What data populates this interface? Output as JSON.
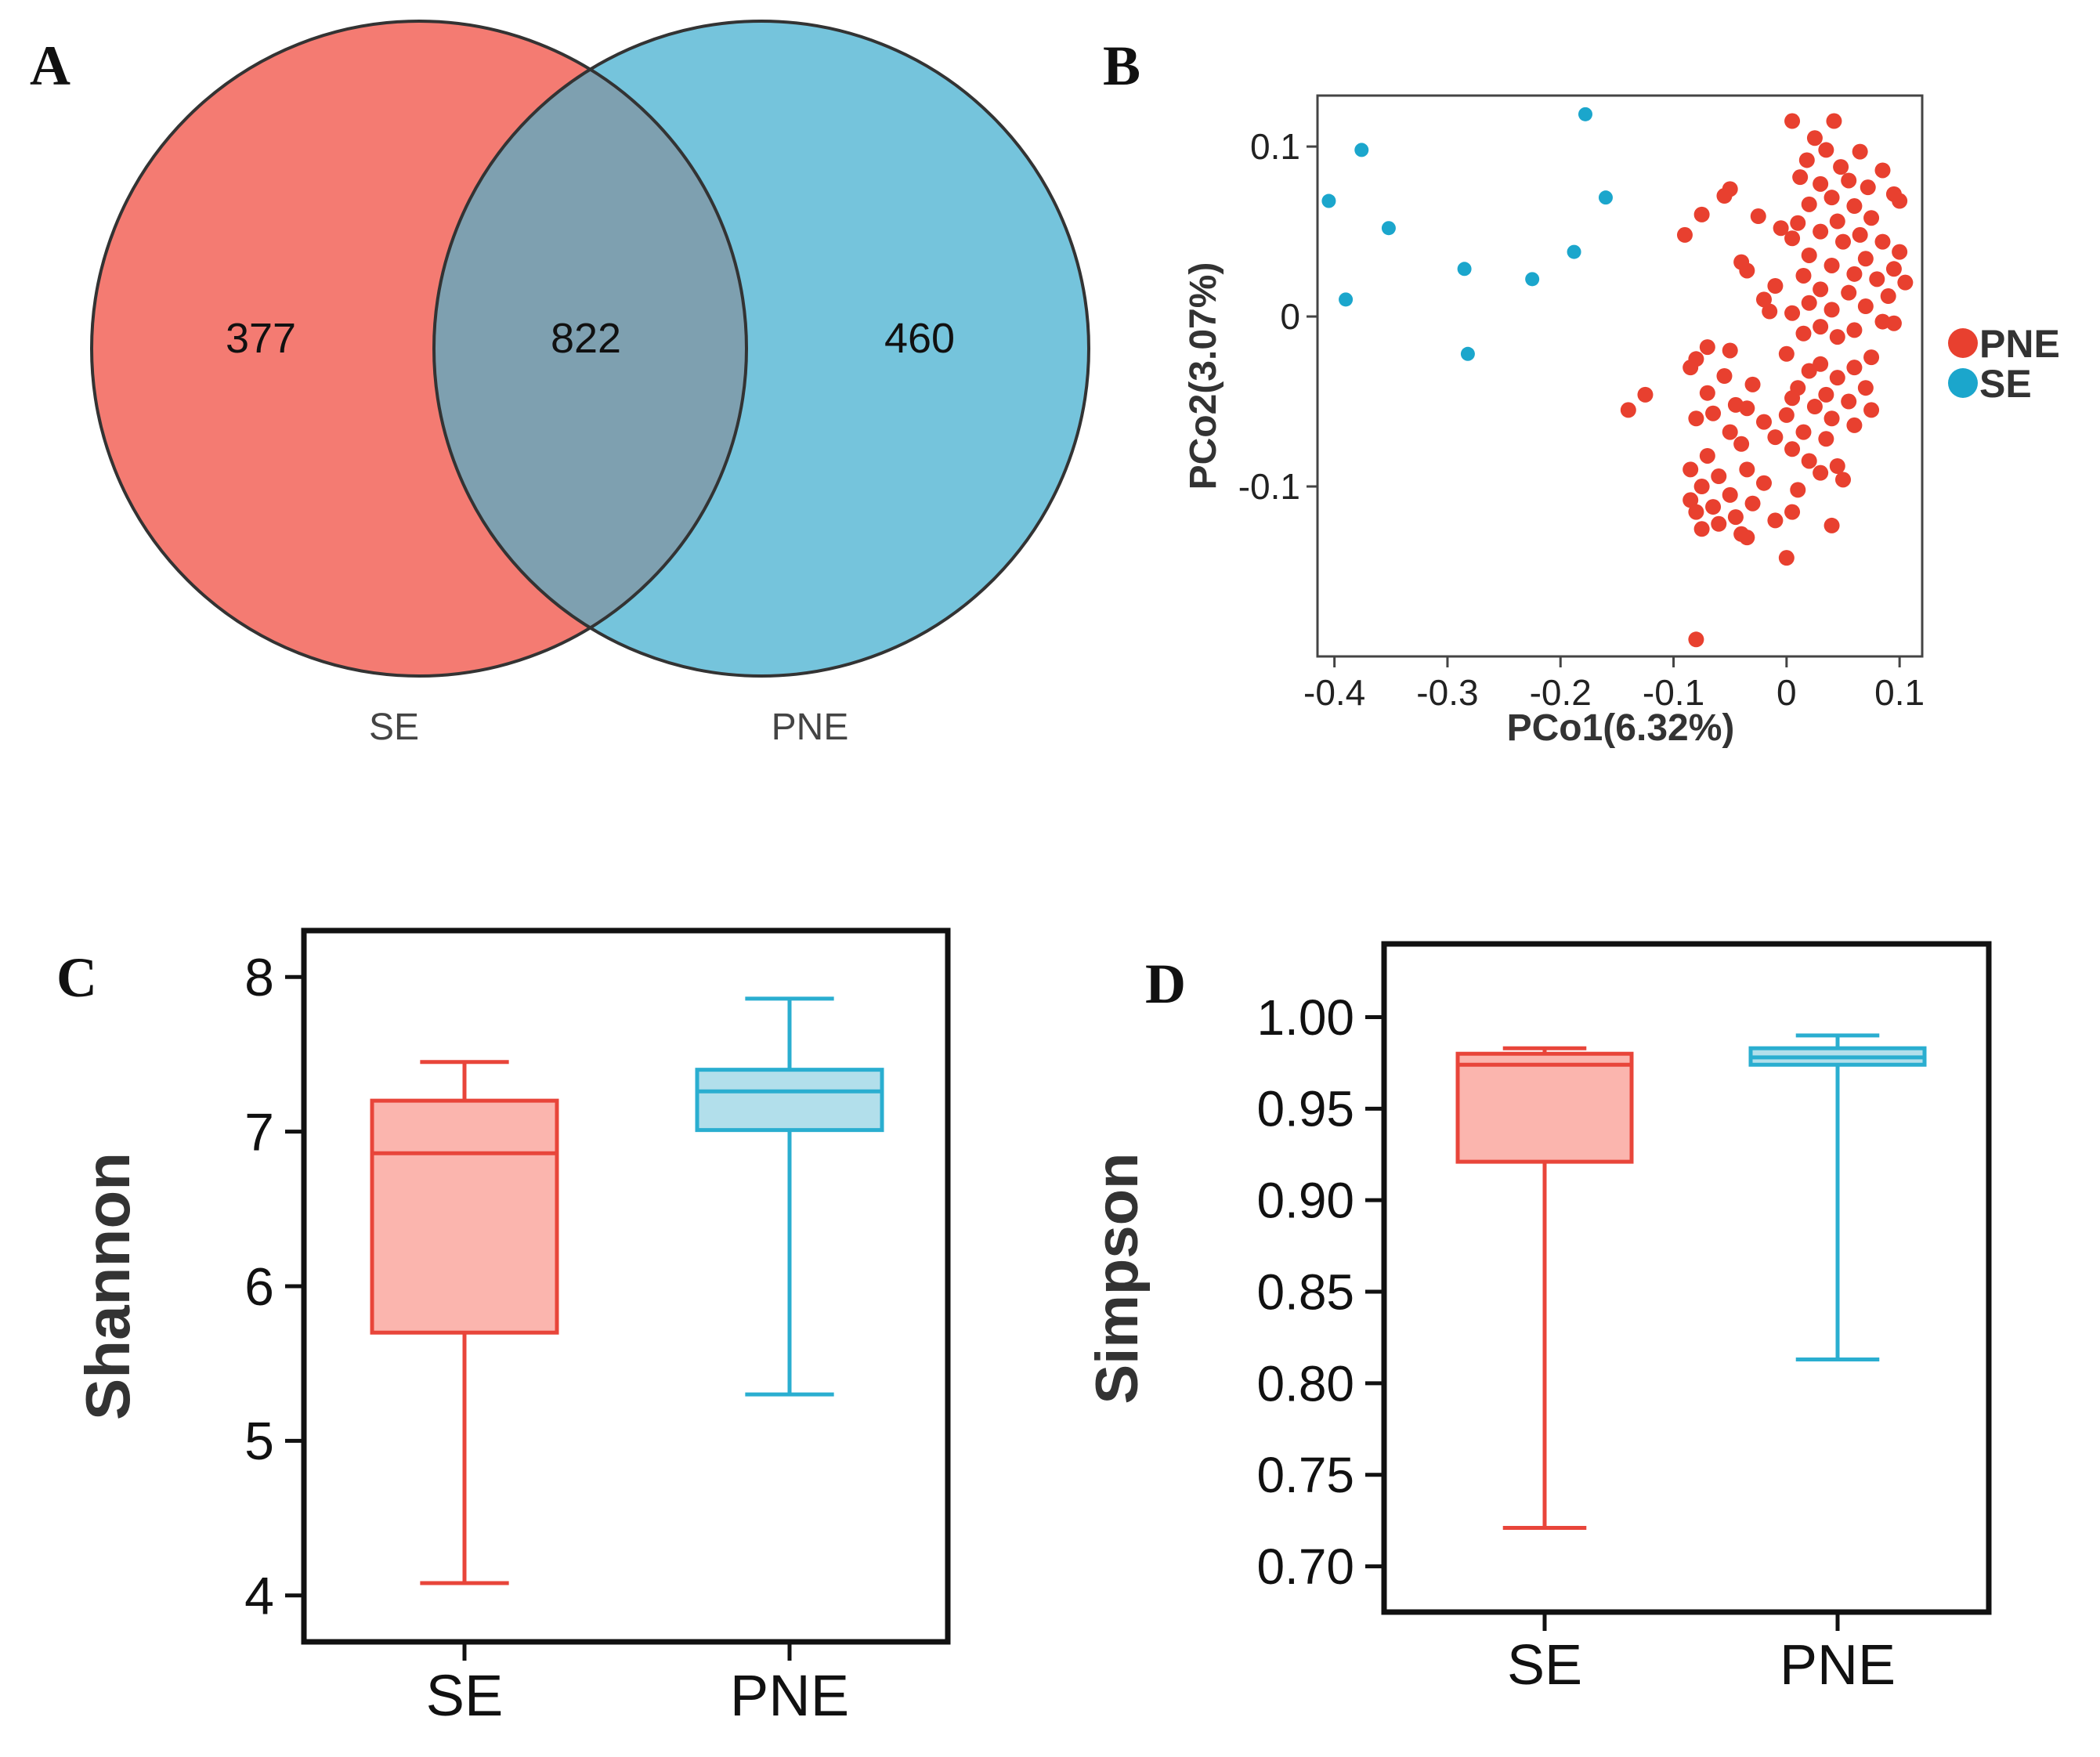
{
  "panel_labels": {
    "a": "A",
    "b": "B",
    "c": "C",
    "d": "D"
  },
  "colors": {
    "se": "#f47b72",
    "pne": "#75c4dc",
    "overlap": "#7ea0b0",
    "red_dot": "#e8402f",
    "blue_dot": "#1ba6cc",
    "box_red": "#e8453a",
    "box_red_fill": "#fbb5ae",
    "box_blue": "#2aaed0",
    "box_blue_fill": "#b2dfeb"
  },
  "chart_data": [
    {
      "type": "venn",
      "sets": [
        {
          "name": "SE",
          "only": "377"
        },
        {
          "name": "PNE",
          "only": "460"
        }
      ],
      "intersection": "822",
      "labels": {
        "left": "SE",
        "right": "PNE"
      }
    },
    {
      "type": "scatter",
      "xlabel": "PCo1(6.32%)",
      "ylabel": "PCo2(3.07%)",
      "xlim": [
        -0.415,
        0.12
      ],
      "ylim": [
        -0.2,
        0.13
      ],
      "xticks": [
        {
          "v": -0.4,
          "t": "-0.4"
        },
        {
          "v": -0.3,
          "t": "-0.3"
        },
        {
          "v": -0.2,
          "t": "-0.2"
        },
        {
          "v": -0.1,
          "t": "-0.1"
        },
        {
          "v": 0,
          "t": "0"
        },
        {
          "v": 0.1,
          "t": "0.1"
        }
      ],
      "yticks": [
        {
          "v": 0.1,
          "t": "0.1"
        },
        {
          "v": 0,
          "t": "0"
        },
        {
          "v": -0.1,
          "t": "-0.1"
        }
      ],
      "legend": [
        {
          "name": "PNE",
          "color": "#e8402f"
        },
        {
          "name": "SE",
          "color": "#1ba6cc"
        }
      ],
      "series": [
        {
          "name": "SE",
          "points": [
            [
              -0.178,
              0.119
            ],
            [
              -0.376,
              0.098
            ],
            [
              -0.405,
              0.068
            ],
            [
              -0.16,
              0.07
            ],
            [
              -0.352,
              0.052
            ],
            [
              -0.188,
              0.038
            ],
            [
              -0.285,
              0.028
            ],
            [
              -0.225,
              0.022
            ],
            [
              -0.39,
              0.01
            ],
            [
              -0.282,
              -0.022
            ]
          ]
        },
        {
          "name": "PNE",
          "points": [
            [
              -0.08,
              -0.19
            ],
            [
              0.005,
              0.115
            ],
            [
              0.042,
              0.115
            ],
            [
              0.025,
              0.105
            ],
            [
              0.035,
              0.098
            ],
            [
              0.065,
              0.097
            ],
            [
              0.018,
              0.092
            ],
            [
              0.048,
              0.088
            ],
            [
              0.085,
              0.086
            ],
            [
              0.012,
              0.082
            ],
            [
              0.055,
              0.08
            ],
            [
              0.03,
              0.078
            ],
            [
              0.072,
              0.076
            ],
            [
              -0.05,
              0.075
            ],
            [
              -0.055,
              0.071
            ],
            [
              0.04,
              0.07
            ],
            [
              0.095,
              0.072
            ],
            [
              0.1,
              0.068
            ],
            [
              0.02,
              0.066
            ],
            [
              0.06,
              0.065
            ],
            [
              -0.075,
              0.06
            ],
            [
              -0.025,
              0.059
            ],
            [
              0.01,
              0.055
            ],
            [
              0.045,
              0.056
            ],
            [
              0.075,
              0.058
            ],
            [
              -0.005,
              0.052
            ],
            [
              0.03,
              0.05
            ],
            [
              0.065,
              0.048
            ],
            [
              -0.09,
              0.048
            ],
            [
              0.005,
              0.046
            ],
            [
              0.05,
              0.044
            ],
            [
              0.085,
              0.044
            ],
            [
              0.1,
              0.038
            ],
            [
              0.02,
              0.036
            ],
            [
              0.07,
              0.034
            ],
            [
              -0.04,
              0.032
            ],
            [
              0.04,
              0.03
            ],
            [
              0.095,
              0.028
            ],
            [
              -0.035,
              0.027
            ],
            [
              0.06,
              0.025
            ],
            [
              0.015,
              0.024
            ],
            [
              0.08,
              0.022
            ],
            [
              0.105,
              0.02
            ],
            [
              -0.01,
              0.018
            ],
            [
              0.03,
              0.016
            ],
            [
              0.055,
              0.014
            ],
            [
              0.09,
              0.012
            ],
            [
              -0.02,
              0.01
            ],
            [
              0.02,
              0.008
            ],
            [
              0.07,
              0.006
            ],
            [
              0.04,
              0.004
            ],
            [
              -0.015,
              0.003
            ],
            [
              0.005,
              0.002
            ],
            [
              0.085,
              -0.003
            ],
            [
              0.095,
              -0.004
            ],
            [
              0.03,
              -0.006
            ],
            [
              0.06,
              -0.008
            ],
            [
              0.015,
              -0.01
            ],
            [
              0.045,
              -0.012
            ],
            [
              -0.07,
              -0.018
            ],
            [
              -0.05,
              -0.02
            ],
            [
              0.0,
              -0.022
            ],
            [
              0.075,
              -0.024
            ],
            [
              -0.08,
              -0.025
            ],
            [
              0.03,
              -0.028
            ],
            [
              0.06,
              -0.03
            ],
            [
              -0.085,
              -0.03
            ],
            [
              0.02,
              -0.032
            ],
            [
              -0.055,
              -0.035
            ],
            [
              0.045,
              -0.036
            ],
            [
              -0.03,
              -0.04
            ],
            [
              0.01,
              -0.042
            ],
            [
              0.07,
              -0.042
            ],
            [
              -0.07,
              -0.045
            ],
            [
              0.035,
              -0.046
            ],
            [
              -0.125,
              -0.046
            ],
            [
              0.005,
              -0.048
            ],
            [
              0.055,
              -0.05
            ],
            [
              -0.045,
              -0.052
            ],
            [
              0.025,
              -0.053
            ],
            [
              -0.14,
              -0.055
            ],
            [
              -0.035,
              -0.054
            ],
            [
              0.075,
              -0.055
            ],
            [
              -0.065,
              -0.057
            ],
            [
              0.0,
              -0.058
            ],
            [
              0.04,
              -0.06
            ],
            [
              -0.08,
              -0.06
            ],
            [
              -0.02,
              -0.062
            ],
            [
              0.06,
              -0.064
            ],
            [
              -0.05,
              -0.068
            ],
            [
              0.015,
              -0.068
            ],
            [
              -0.01,
              -0.071
            ],
            [
              0.035,
              -0.072
            ],
            [
              -0.04,
              -0.075
            ],
            [
              0.005,
              -0.078
            ],
            [
              -0.07,
              -0.082
            ],
            [
              0.02,
              -0.085
            ],
            [
              0.045,
              -0.088
            ],
            [
              -0.035,
              -0.09
            ],
            [
              -0.085,
              -0.09
            ],
            [
              0.03,
              -0.092
            ],
            [
              -0.06,
              -0.094
            ],
            [
              0.05,
              -0.096
            ],
            [
              -0.02,
              -0.098
            ],
            [
              -0.075,
              -0.1
            ],
            [
              0.01,
              -0.102
            ],
            [
              -0.05,
              -0.105
            ],
            [
              -0.085,
              -0.108
            ],
            [
              -0.03,
              -0.11
            ],
            [
              -0.065,
              -0.112
            ],
            [
              0.005,
              -0.115
            ],
            [
              -0.08,
              -0.115
            ],
            [
              -0.045,
              -0.118
            ],
            [
              -0.01,
              -0.12
            ],
            [
              -0.06,
              -0.122
            ],
            [
              -0.075,
              -0.125
            ],
            [
              -0.04,
              -0.128
            ],
            [
              0.04,
              -0.123
            ],
            [
              -0.035,
              -0.13
            ],
            [
              0.0,
              -0.142
            ]
          ]
        }
      ]
    },
    {
      "type": "box",
      "ylabel": "Shannon",
      "ylim": [
        3.7,
        8.3
      ],
      "yticks": [
        {
          "v": 4,
          "t": "4"
        },
        {
          "v": 5,
          "t": "5"
        },
        {
          "v": 6,
          "t": "6"
        },
        {
          "v": 7,
          "t": "7"
        },
        {
          "v": 8,
          "t": "8"
        }
      ],
      "categories": [
        "SE",
        "PNE"
      ],
      "boxes": [
        {
          "name": "SE",
          "min": 4.08,
          "q1": 5.7,
          "median": 6.86,
          "q3": 7.2,
          "max": 7.45
        },
        {
          "name": "PNE",
          "min": 5.3,
          "q1": 7.01,
          "median": 7.26,
          "q3": 7.4,
          "max": 7.86
        }
      ]
    },
    {
      "type": "box",
      "ylabel": "Simpson",
      "ylim": [
        0.675,
        1.04
      ],
      "yticks": [
        {
          "v": 0.7,
          "t": "0.70"
        },
        {
          "v": 0.75,
          "t": "0.75"
        },
        {
          "v": 0.8,
          "t": "0.80"
        },
        {
          "v": 0.85,
          "t": "0.85"
        },
        {
          "v": 0.9,
          "t": "0.90"
        },
        {
          "v": 0.95,
          "t": "0.95"
        },
        {
          "v": 1.0,
          "t": "1.00"
        }
      ],
      "categories": [
        "SE",
        "PNE"
      ],
      "boxes": [
        {
          "name": "SE",
          "min": 0.721,
          "q1": 0.921,
          "median": 0.974,
          "q3": 0.98,
          "max": 0.983
        },
        {
          "name": "PNE",
          "min": 0.813,
          "q1": 0.974,
          "median": 0.978,
          "q3": 0.983,
          "max": 0.99
        }
      ]
    }
  ]
}
